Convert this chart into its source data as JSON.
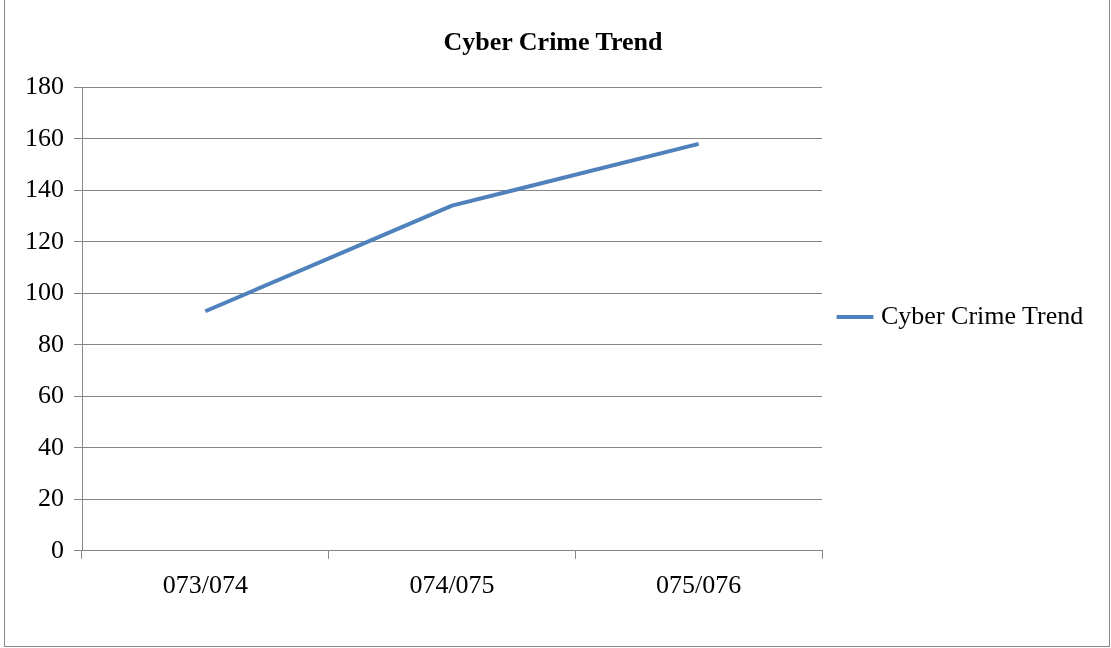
{
  "chart_data": {
    "type": "line",
    "title": "Cyber Crime Trend",
    "categories": [
      "073/074",
      "074/075",
      "075/076"
    ],
    "series": [
      {
        "name": "Cyber Crime Trend",
        "color": "#4f81bd",
        "values": [
          93,
          134,
          158
        ]
      }
    ],
    "ylim": [
      0,
      180
    ],
    "yticks": [
      0,
      20,
      40,
      60,
      80,
      100,
      120,
      140,
      160,
      180
    ],
    "grid": "y",
    "legend": "right",
    "marker": "none",
    "line_style": "solid"
  }
}
